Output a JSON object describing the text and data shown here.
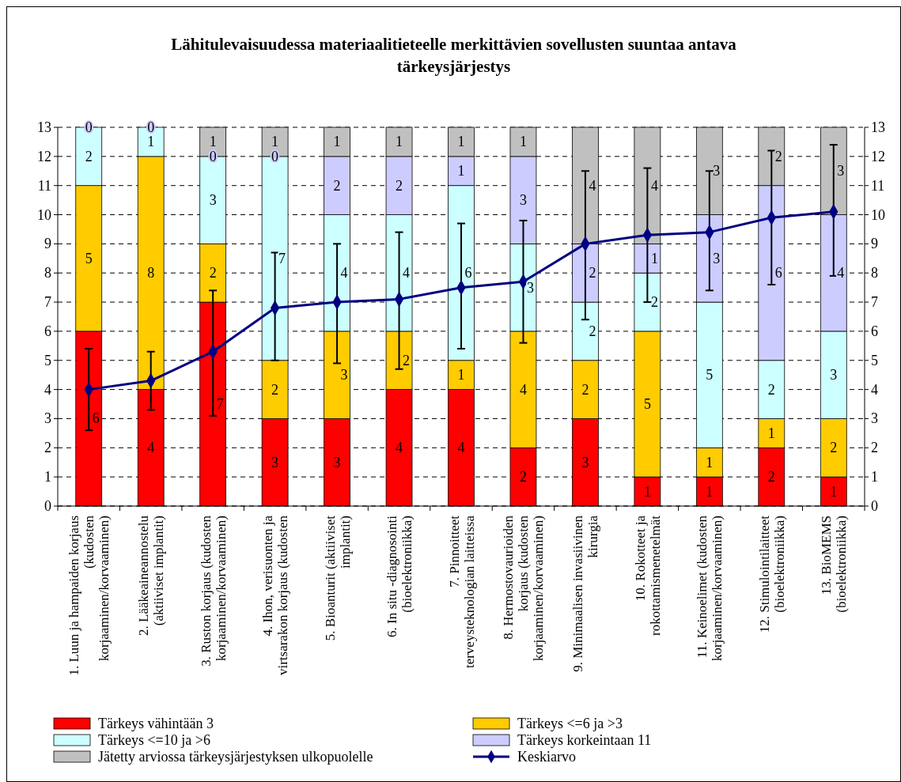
{
  "chart_data": {
    "type": "bar",
    "stacked": true,
    "title": "Lähitulevaisuudessa materiaalitieteelle merkittävien sovellusten suuntaa antava tärkeysjärjestys",
    "categories": [
      "1. Luun ja hampaiden korjaus (kudosten korjaaminen/korvaaminen)",
      "2. Lääkeaineannostelu (aktiiviset implantit)",
      "3. Ruston korjaus (kudosten korjaaminen/korvaaminen)",
      "4. Ihon, verisuonten ja virtsarakon korjaus (kudosten",
      "5. Bioanturit (aktiiviset implantit)",
      "6. In situ -diagnosointi (bioelektroniikka)",
      "7. Pinnoitteet terveysteknologian laitteissa",
      "8. Hermostovaurioiden korjaus (kudosten korjaaminen/korvaaminen)",
      "9. Minimaalisen invasiivinen kirurgia",
      "10. Rokotteet ja rokottamismenetelmät",
      "11. Keinoelimet (kudosten korjaaminen/korvaaminen)",
      "12. Stimulointilaitteet (bioelektroniikka)",
      "13. BioMEMS (bioelektroniikka)"
    ],
    "series": [
      {
        "name": "Tärkeys vähintään 3",
        "color": "#ff0000",
        "values": [
          6,
          4,
          7,
          3,
          3,
          4,
          4,
          2,
          3,
          1,
          1,
          2,
          1
        ],
        "value_labels": [
          "6",
          "4",
          "7",
          "3",
          "3",
          "4",
          "4",
          "2",
          "3",
          "1",
          "1",
          "2",
          "1"
        ]
      },
      {
        "name": "Tärkeys <=6 ja >3",
        "color": "#ffcc00",
        "values": [
          5,
          8,
          2,
          2,
          3,
          2,
          1,
          4,
          2,
          5,
          1,
          1,
          2
        ],
        "value_labels": [
          "5",
          "8",
          "2",
          "2",
          "3",
          "2",
          "1",
          "4",
          "2",
          "5",
          "1",
          "1",
          "2"
        ]
      },
      {
        "name": "Tärkeys <=10 ja >6",
        "color": "#ccffff",
        "values": [
          2,
          1,
          3,
          7,
          4,
          4,
          6,
          3,
          2,
          2,
          5,
          2,
          3
        ],
        "value_labels": [
          "2",
          "1",
          "3",
          "7",
          "4",
          "4",
          "6",
          "3",
          "2",
          "2",
          "5",
          "2",
          "3"
        ]
      },
      {
        "name": "Tärkeys korkeintaan 11",
        "color": "#ccccff",
        "values": [
          0,
          0,
          0,
          0,
          2,
          2,
          1,
          3,
          2,
          1,
          3,
          6,
          4
        ],
        "value_labels": [
          "0",
          "0",
          "0",
          "0",
          "2",
          "2",
          "1",
          "3",
          "2",
          "1",
          "3",
          "6",
          "4"
        ]
      },
      {
        "name": "Jätetty arviossa tärkeysjärjestyksen ulkopuolelle",
        "color": "#c0c0c0",
        "values": [
          0,
          0,
          1,
          1,
          1,
          1,
          1,
          1,
          4,
          4,
          3,
          2,
          3
        ],
        "value_labels": [
          null,
          null,
          "1",
          "1",
          "1",
          "1",
          "1",
          "1",
          "4",
          "4",
          "3",
          "2",
          "3"
        ]
      },
      {
        "name": "Keskiarvo",
        "type": "line",
        "axis": "y2",
        "color": "#000080",
        "marker": "diamond",
        "values": [
          4.0,
          4.3,
          5.3,
          6.8,
          7.0,
          7.1,
          7.5,
          7.7,
          9.0,
          9.3,
          9.4,
          9.9,
          10.1
        ],
        "errors": [
          [
            2.6,
            5.4
          ],
          [
            3.3,
            5.3
          ],
          [
            3.1,
            7.4
          ],
          [
            5.0,
            8.7
          ],
          [
            4.9,
            9.0
          ],
          [
            4.7,
            9.4
          ],
          [
            5.4,
            9.7
          ],
          [
            5.6,
            9.8
          ],
          [
            6.4,
            11.5
          ],
          [
            7.0,
            11.6
          ],
          [
            7.4,
            11.5
          ],
          [
            7.6,
            12.2
          ],
          [
            7.9,
            12.4
          ]
        ]
      }
    ],
    "ylim": [
      0,
      13
    ],
    "yticks": [
      0,
      1,
      2,
      3,
      4,
      5,
      6,
      7,
      8,
      9,
      10,
      11,
      12,
      13
    ],
    "y2lim": [
      0,
      13
    ],
    "y2ticks": [
      0,
      1,
      2,
      3,
      4,
      5,
      6,
      7,
      8,
      9,
      10,
      11,
      12,
      13
    ],
    "grid": "y",
    "legend": "bottom"
  }
}
